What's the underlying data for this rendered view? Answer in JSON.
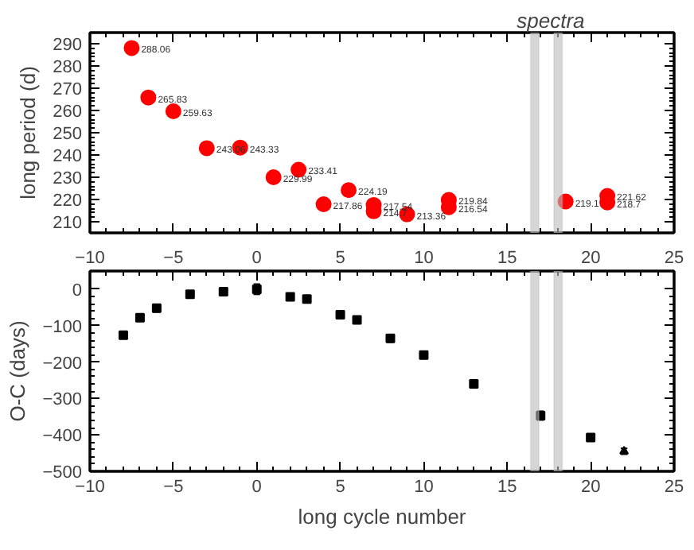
{
  "chart_data": [
    {
      "type": "scatter",
      "ylabel": "long period (d)",
      "annotations": [
        "spectra"
      ],
      "xlim": [
        -10,
        25
      ],
      "ylim": [
        205,
        295
      ],
      "xticks": [
        -10,
        -5,
        0,
        5,
        10,
        15,
        20,
        25
      ],
      "yticks": [
        210,
        220,
        230,
        240,
        250,
        260,
        270,
        280,
        290
      ],
      "tick_labels": "y",
      "marker": "circle",
      "data_labels": true,
      "series": [
        {
          "color": "#ff0000",
          "x": [
            -7.5,
            -6.5,
            -5,
            -3,
            -1,
            1,
            2.5,
            4,
            5.5,
            7,
            7,
            9,
            11.5,
            11.5,
            18.5,
            21,
            21
          ],
          "values": [
            288.06,
            265.83,
            259.63,
            243.06,
            243.33,
            229.99,
            233.41,
            217.86,
            224.19,
            217.54,
            214.7,
            213.36,
            219.84,
            216.54,
            219.1,
            221.62,
            218.7
          ]
        }
      ],
      "bands": [
        {
          "axis": "x",
          "from": 16.4,
          "to": 16.9,
          "color": "#bbbbbb"
        },
        {
          "axis": "x",
          "from": 17.8,
          "to": 18.3,
          "color": "#bbbbbb"
        }
      ]
    },
    {
      "type": "scatter",
      "xlabel": "long cycle number",
      "ylabel": "O-C (days)",
      "xlim": [
        -10,
        25
      ],
      "ylim": [
        -500,
        50
      ],
      "xticks": [
        -10,
        -5,
        0,
        5,
        10,
        15,
        20,
        25
      ],
      "yticks": [
        -500,
        -400,
        -300,
        -200,
        -100,
        0
      ],
      "x2lim": [
        -10,
        25
      ],
      "x2ticks": [
        -10,
        -5,
        0,
        5,
        10,
        15,
        20,
        25
      ],
      "series": [
        {
          "color": "#000000",
          "marker": "square",
          "x": [
            -8,
            -7,
            -6,
            -4,
            -2,
            0,
            2,
            3,
            5,
            6,
            8,
            10,
            13,
            17,
            20
          ],
          "values": [
            -126,
            -78,
            -52,
            -14,
            -7,
            0,
            -21,
            -27,
            -70,
            -84,
            -135,
            -181,
            -260,
            -347,
            -407
          ],
          "errors": [
            6,
            8,
            10,
            8,
            10,
            14,
            6,
            6,
            6,
            5,
            10,
            8,
            null,
            12,
            7
          ]
        },
        {
          "color": "#000000",
          "marker": "triangle",
          "x": [
            22
          ],
          "values": [
            -445
          ],
          "errors": [
            8
          ]
        }
      ],
      "bands": [
        {
          "axis": "x",
          "from": 16.4,
          "to": 16.9,
          "color": "#bbbbbb"
        },
        {
          "axis": "x",
          "from": 17.8,
          "to": 18.3,
          "color": "#bbbbbb"
        }
      ]
    }
  ]
}
